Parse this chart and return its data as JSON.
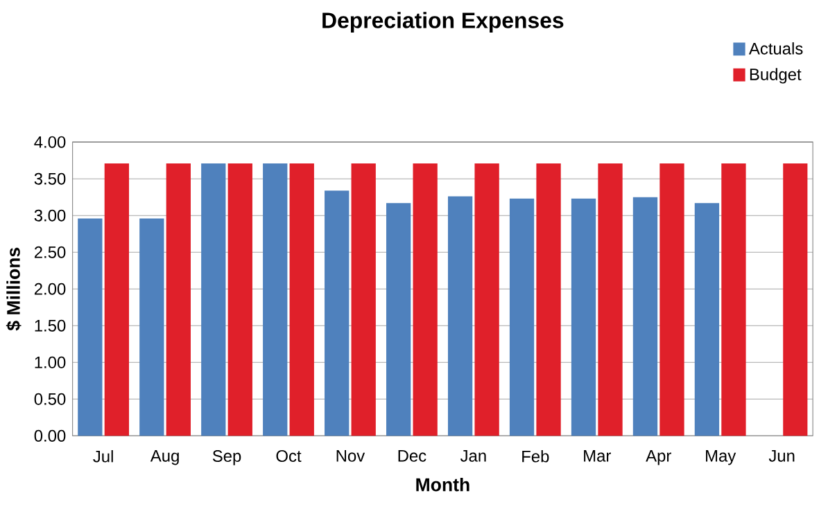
{
  "chart_data": {
    "type": "bar",
    "title": "Depreciation Expenses",
    "xlabel": "Month",
    "ylabel": "$ Millions",
    "categories": [
      "Jul",
      "Aug",
      "Sep",
      "Oct",
      "Nov",
      "Dec",
      "Jan",
      "Feb",
      "Mar",
      "Apr",
      "May",
      "Jun"
    ],
    "series": [
      {
        "name": "Actuals",
        "color": "#4f81bd",
        "values": [
          2.95,
          2.95,
          3.7,
          3.7,
          3.33,
          3.16,
          3.25,
          3.22,
          3.22,
          3.24,
          3.16,
          null
        ]
      },
      {
        "name": "Budget",
        "color": "#e0202a",
        "values": [
          3.7,
          3.7,
          3.7,
          3.7,
          3.7,
          3.7,
          3.7,
          3.7,
          3.7,
          3.7,
          3.7,
          3.7
        ]
      }
    ],
    "ylim": [
      0,
      4
    ],
    "yticks": [
      {
        "value": 0,
        "label": "0.00"
      },
      {
        "value": 0.5,
        "label": "0.50"
      },
      {
        "value": 1,
        "label": "1.00"
      },
      {
        "value": 1.5,
        "label": "1.50"
      },
      {
        "value": 2,
        "label": "2.00"
      },
      {
        "value": 2.5,
        "label": "2.50"
      },
      {
        "value": 3,
        "label": "3.00"
      },
      {
        "value": 3.5,
        "label": "3.50"
      },
      {
        "value": 4,
        "label": "4.00"
      }
    ],
    "grid": "y",
    "legend": "top right"
  }
}
